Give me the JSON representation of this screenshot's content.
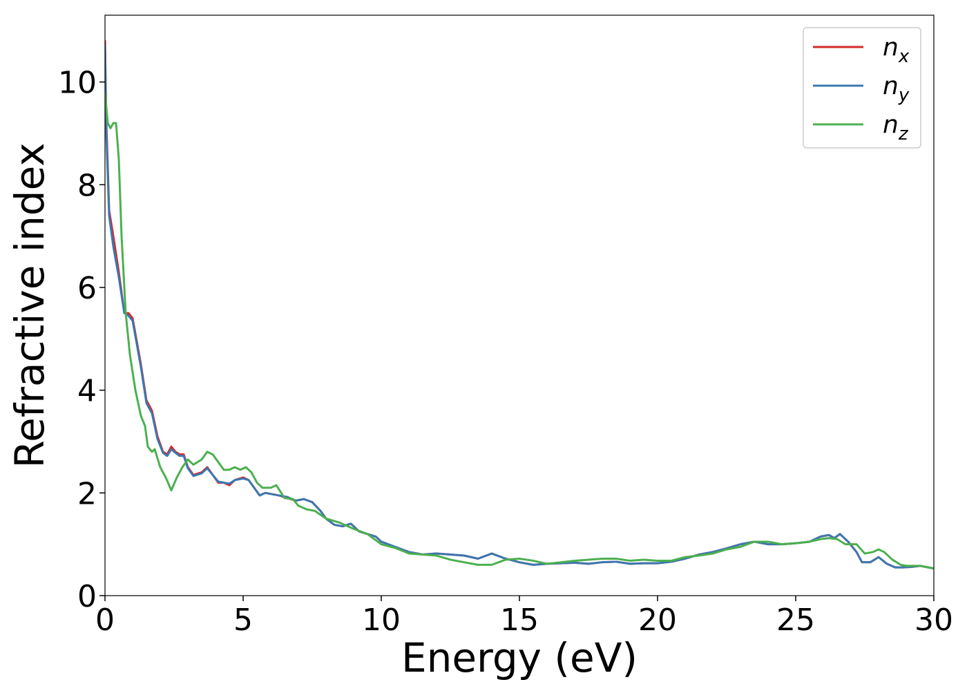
{
  "chart_data": {
    "type": "line",
    "xlabel": "Energy (eV)",
    "ylabel": "Refractive index",
    "xlim": [
      0,
      30
    ],
    "ylim": [
      0,
      11.3
    ],
    "xticks": [
      0,
      5,
      10,
      15,
      20,
      25,
      30
    ],
    "yticks": [
      0,
      2,
      4,
      6,
      8,
      10
    ],
    "grid": false,
    "legend_position": "top-right",
    "colors": {
      "nx": "#d62728",
      "ny": "#3b78b0",
      "nz": "#4bb04f"
    },
    "series": [
      {
        "name": "n_x",
        "label_main": "n",
        "label_sub": "x",
        "x": [
          0,
          0.05,
          0.15,
          0.3,
          0.5,
          0.7,
          0.85,
          1.0,
          1.3,
          1.5,
          1.7,
          1.9,
          2.1,
          2.25,
          2.4,
          2.55,
          2.7,
          2.85,
          3.0,
          3.2,
          3.5,
          3.7,
          3.9,
          4.1,
          4.3,
          4.5,
          4.7,
          5.0,
          5.2,
          5.4,
          5.6,
          5.8,
          6.0,
          6.3,
          6.6,
          6.9,
          7.2,
          7.5,
          7.8,
          8.0,
          8.3,
          8.6,
          8.9,
          9.2,
          9.5,
          9.8,
          10.0,
          10.5,
          11.0,
          11.5,
          12.0,
          12.5,
          13.0,
          13.5,
          14.0,
          14.5,
          15.0,
          15.5,
          16.0,
          16.5,
          17.0,
          17.5,
          18.0,
          18.5,
          19.0,
          19.5,
          20.0,
          20.5,
          21.0,
          21.5,
          22.0,
          22.5,
          23.0,
          23.5,
          24.0,
          24.5,
          25.0,
          25.5,
          25.9,
          26.2,
          26.4,
          26.6,
          26.9,
          27.2,
          27.4,
          27.7,
          28.0,
          28.3,
          28.6,
          28.9,
          29.2,
          29.5,
          30.0
        ],
        "y": [
          10.8,
          9.2,
          7.5,
          7.0,
          6.3,
          5.5,
          5.5,
          5.4,
          4.5,
          3.8,
          3.6,
          3.1,
          2.8,
          2.75,
          2.9,
          2.8,
          2.75,
          2.75,
          2.5,
          2.35,
          2.4,
          2.5,
          2.35,
          2.2,
          2.2,
          2.15,
          2.25,
          2.3,
          2.25,
          2.1,
          1.95,
          2.0,
          1.98,
          1.95,
          1.9,
          1.85,
          1.88,
          1.82,
          1.65,
          1.5,
          1.38,
          1.35,
          1.4,
          1.25,
          1.2,
          1.15,
          1.05,
          0.95,
          0.85,
          0.8,
          0.82,
          0.8,
          0.78,
          0.72,
          0.82,
          0.72,
          0.65,
          0.6,
          0.62,
          0.63,
          0.64,
          0.62,
          0.65,
          0.66,
          0.62,
          0.63,
          0.63,
          0.66,
          0.72,
          0.8,
          0.85,
          0.92,
          1.0,
          1.05,
          1.0,
          1.0,
          1.02,
          1.05,
          1.15,
          1.18,
          1.12,
          1.2,
          1.05,
          0.85,
          0.65,
          0.65,
          0.75,
          0.62,
          0.55,
          0.55,
          0.56,
          0.58,
          0.53
        ]
      },
      {
        "name": "n_y",
        "label_main": "n",
        "label_sub": "y",
        "x": [
          0,
          0.05,
          0.15,
          0.3,
          0.5,
          0.7,
          0.85,
          1.0,
          1.3,
          1.5,
          1.7,
          1.9,
          2.1,
          2.25,
          2.4,
          2.55,
          2.7,
          2.85,
          3.0,
          3.2,
          3.5,
          3.7,
          3.9,
          4.1,
          4.3,
          4.5,
          4.7,
          5.0,
          5.2,
          5.4,
          5.6,
          5.8,
          6.0,
          6.3,
          6.6,
          6.9,
          7.2,
          7.5,
          7.8,
          8.0,
          8.3,
          8.6,
          8.9,
          9.2,
          9.5,
          9.8,
          10.0,
          10.5,
          11.0,
          11.5,
          12.0,
          12.5,
          13.0,
          13.5,
          14.0,
          14.5,
          15.0,
          15.5,
          16.0,
          16.5,
          17.0,
          17.5,
          18.0,
          18.5,
          19.0,
          19.5,
          20.0,
          20.5,
          21.0,
          21.5,
          22.0,
          22.5,
          23.0,
          23.5,
          24.0,
          24.5,
          25.0,
          25.5,
          25.9,
          26.2,
          26.4,
          26.6,
          26.9,
          27.2,
          27.4,
          27.7,
          28.0,
          28.3,
          28.6,
          28.9,
          29.2,
          29.5,
          30.0
        ],
        "y": [
          10.7,
          9.0,
          7.4,
          6.8,
          6.2,
          5.5,
          5.45,
          5.35,
          4.45,
          3.75,
          3.55,
          3.05,
          2.78,
          2.72,
          2.85,
          2.78,
          2.72,
          2.72,
          2.48,
          2.33,
          2.38,
          2.48,
          2.35,
          2.22,
          2.2,
          2.18,
          2.25,
          2.28,
          2.25,
          2.1,
          1.95,
          2.0,
          1.98,
          1.95,
          1.92,
          1.85,
          1.88,
          1.82,
          1.65,
          1.5,
          1.38,
          1.35,
          1.4,
          1.25,
          1.2,
          1.15,
          1.05,
          0.95,
          0.85,
          0.8,
          0.82,
          0.8,
          0.78,
          0.72,
          0.82,
          0.72,
          0.65,
          0.6,
          0.62,
          0.63,
          0.64,
          0.62,
          0.65,
          0.66,
          0.62,
          0.63,
          0.63,
          0.66,
          0.72,
          0.8,
          0.85,
          0.92,
          1.0,
          1.05,
          1.0,
          1.0,
          1.02,
          1.05,
          1.15,
          1.18,
          1.12,
          1.2,
          1.05,
          0.85,
          0.65,
          0.65,
          0.75,
          0.62,
          0.55,
          0.55,
          0.56,
          0.58,
          0.53
        ]
      },
      {
        "name": "n_z",
        "label_main": "n",
        "label_sub": "z",
        "x": [
          0,
          0.1,
          0.2,
          0.3,
          0.4,
          0.5,
          0.6,
          0.75,
          0.9,
          1.1,
          1.3,
          1.45,
          1.55,
          1.7,
          1.8,
          2.0,
          2.2,
          2.4,
          2.6,
          2.8,
          3.0,
          3.2,
          3.5,
          3.7,
          3.9,
          4.1,
          4.3,
          4.5,
          4.7,
          4.9,
          5.1,
          5.3,
          5.5,
          5.7,
          6.0,
          6.2,
          6.5,
          6.8,
          7.0,
          7.3,
          7.6,
          8.0,
          8.5,
          9.0,
          9.5,
          10.0,
          10.5,
          11.0,
          11.5,
          12.0,
          12.5,
          13.0,
          13.5,
          14.0,
          14.5,
          15.0,
          15.5,
          16.0,
          16.5,
          17.0,
          17.5,
          18.0,
          18.5,
          19.0,
          19.5,
          20.0,
          20.5,
          21.0,
          21.5,
          22.0,
          22.5,
          23.0,
          23.5,
          24.0,
          24.5,
          25.0,
          25.5,
          25.9,
          26.2,
          26.5,
          26.8,
          27.2,
          27.5,
          27.8,
          28.0,
          28.2,
          28.5,
          28.8,
          29.0,
          29.5,
          30.0
        ],
        "y": [
          9.8,
          9.2,
          9.1,
          9.2,
          9.2,
          8.5,
          7.0,
          5.5,
          4.7,
          4.0,
          3.5,
          3.3,
          2.9,
          2.8,
          2.85,
          2.5,
          2.3,
          2.05,
          2.3,
          2.5,
          2.65,
          2.55,
          2.65,
          2.8,
          2.75,
          2.6,
          2.45,
          2.45,
          2.5,
          2.45,
          2.5,
          2.4,
          2.2,
          2.1,
          2.1,
          2.15,
          1.9,
          1.88,
          1.75,
          1.68,
          1.65,
          1.5,
          1.42,
          1.3,
          1.2,
          1.0,
          0.93,
          0.82,
          0.8,
          0.78,
          0.7,
          0.65,
          0.6,
          0.6,
          0.7,
          0.72,
          0.68,
          0.62,
          0.65,
          0.68,
          0.7,
          0.72,
          0.72,
          0.68,
          0.7,
          0.68,
          0.68,
          0.75,
          0.78,
          0.82,
          0.9,
          0.95,
          1.05,
          1.05,
          1.0,
          1.02,
          1.05,
          1.1,
          1.12,
          1.1,
          1.0,
          1.0,
          0.82,
          0.85,
          0.9,
          0.85,
          0.7,
          0.6,
          0.58,
          0.58,
          0.53
        ]
      }
    ]
  }
}
